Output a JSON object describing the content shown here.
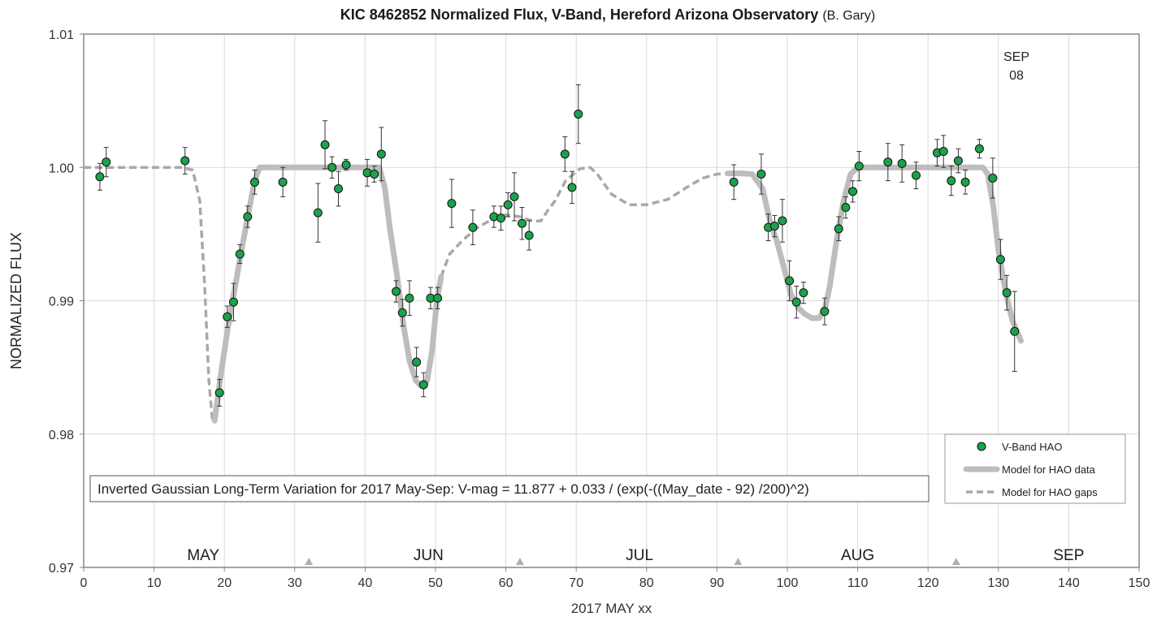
{
  "chart_data": {
    "type": "scatter",
    "title": "KIC 8462852 Normalized Flux, V-Band, Hereford Arizona Observatory",
    "title_credit": "(B. Gary)",
    "xlabel": "2017 MAY xx",
    "ylabel": "NORMALIZED FLUX",
    "xlim": [
      0,
      150
    ],
    "ylim": [
      0.97,
      1.01
    ],
    "x_ticks": [
      0,
      10,
      20,
      30,
      40,
      50,
      60,
      70,
      80,
      90,
      100,
      110,
      120,
      130,
      140,
      150
    ],
    "y_ticks": [
      0.97,
      0.98,
      0.99,
      1.0,
      1.01
    ],
    "y_tick_labels": [
      "0.97",
      "0.98",
      "0.99",
      "1.00",
      "1.01"
    ],
    "grid": true,
    "legend_position": "bottom-right",
    "colors": {
      "points": "#1aa34a",
      "model": "#bdbdbd",
      "gaps": "#a8a8a8",
      "months": "#b0b0b0",
      "axis": "#868686"
    },
    "annotations": {
      "formula": "Inverted Gaussian Long-Term Variation for 2017 May-Sep:  V-mag = 11.877 + 0.033 / (exp(-((May_date - 92) /200)^2)",
      "sep08": [
        "SEP",
        "08"
      ]
    },
    "months": [
      {
        "label": "MAY",
        "x": 17
      },
      {
        "label": "JUN",
        "x": 49
      },
      {
        "label": "JUL",
        "x": 79
      },
      {
        "label": "AUG",
        "x": 110
      },
      {
        "label": "SEP",
        "x": 140
      }
    ],
    "month_boundaries": [
      32,
      62,
      93,
      124
    ],
    "series": [
      {
        "name": "V-Band HAO",
        "kind": "points",
        "points": [
          {
            "x": 2.3,
            "y": 0.9993,
            "err": 0.001
          },
          {
            "x": 3.2,
            "y": 1.0004,
            "err": 0.0011
          },
          {
            "x": 14.4,
            "y": 1.0005,
            "err": 0.001
          },
          {
            "x": 19.3,
            "y": 0.9831,
            "err": 0.001
          },
          {
            "x": 20.4,
            "y": 0.9888,
            "err": 0.0008
          },
          {
            "x": 21.3,
            "y": 0.9899,
            "err": 0.0014
          },
          {
            "x": 22.2,
            "y": 0.9935,
            "err": 0.0007
          },
          {
            "x": 23.3,
            "y": 0.9963,
            "err": 0.0008
          },
          {
            "x": 24.3,
            "y": 0.9989,
            "err": 0.0009
          },
          {
            "x": 28.3,
            "y": 0.9989,
            "err": 0.0011
          },
          {
            "x": 33.3,
            "y": 0.9966,
            "err": 0.0022
          },
          {
            "x": 34.3,
            "y": 1.0017,
            "err": 0.0018
          },
          {
            "x": 35.3,
            "y": 1.0,
            "err": 0.0008
          },
          {
            "x": 36.2,
            "y": 0.9984,
            "err": 0.0013
          },
          {
            "x": 37.3,
            "y": 1.0002,
            "err": 0.0004
          },
          {
            "x": 40.3,
            "y": 0.9996,
            "err": 0.001
          },
          {
            "x": 41.3,
            "y": 0.9995,
            "err": 0.0006
          },
          {
            "x": 42.3,
            "y": 1.001,
            "err": 0.002
          },
          {
            "x": 44.4,
            "y": 0.9907,
            "err": 0.0008
          },
          {
            "x": 45.3,
            "y": 0.9891,
            "err": 0.001
          },
          {
            "x": 46.3,
            "y": 0.9902,
            "err": 0.0013
          },
          {
            "x": 47.3,
            "y": 0.9854,
            "err": 0.0011
          },
          {
            "x": 48.3,
            "y": 0.9837,
            "err": 0.0009
          },
          {
            "x": 49.3,
            "y": 0.9902,
            "err": 0.0008
          },
          {
            "x": 50.3,
            "y": 0.9902,
            "err": 0.0008
          },
          {
            "x": 52.3,
            "y": 0.9973,
            "err": 0.0018
          },
          {
            "x": 55.3,
            "y": 0.9955,
            "err": 0.0013
          },
          {
            "x": 58.3,
            "y": 0.9963,
            "err": 0.0008
          },
          {
            "x": 59.3,
            "y": 0.9962,
            "err": 0.0009
          },
          {
            "x": 60.3,
            "y": 0.9972,
            "err": 0.0009
          },
          {
            "x": 61.2,
            "y": 0.9978,
            "err": 0.0018
          },
          {
            "x": 62.3,
            "y": 0.9958,
            "err": 0.0012
          },
          {
            "x": 63.3,
            "y": 0.9949,
            "err": 0.0011
          },
          {
            "x": 68.4,
            "y": 1.001,
            "err": 0.0013
          },
          {
            "x": 69.4,
            "y": 0.9985,
            "err": 0.0012
          },
          {
            "x": 70.3,
            "y": 1.004,
            "err": 0.0022
          },
          {
            "x": 92.4,
            "y": 0.9989,
            "err": 0.0013
          },
          {
            "x": 96.3,
            "y": 0.9995,
            "err": 0.0015
          },
          {
            "x": 97.3,
            "y": 0.9955,
            "err": 0.001
          },
          {
            "x": 98.2,
            "y": 0.9956,
            "err": 0.0008
          },
          {
            "x": 99.3,
            "y": 0.996,
            "err": 0.0016
          },
          {
            "x": 100.3,
            "y": 0.9915,
            "err": 0.0015
          },
          {
            "x": 101.3,
            "y": 0.9899,
            "err": 0.0012
          },
          {
            "x": 102.3,
            "y": 0.9906,
            "err": 0.0008
          },
          {
            "x": 105.3,
            "y": 0.9892,
            "err": 0.001
          },
          {
            "x": 107.3,
            "y": 0.9954,
            "err": 0.0009
          },
          {
            "x": 108.3,
            "y": 0.997,
            "err": 0.0008
          },
          {
            "x": 109.3,
            "y": 0.9982,
            "err": 0.0008
          },
          {
            "x": 110.2,
            "y": 1.0001,
            "err": 0.0011
          },
          {
            "x": 114.3,
            "y": 1.0004,
            "err": 0.0014
          },
          {
            "x": 116.3,
            "y": 1.0003,
            "err": 0.0014
          },
          {
            "x": 118.3,
            "y": 0.9994,
            "err": 0.001
          },
          {
            "x": 121.3,
            "y": 1.0011,
            "err": 0.001
          },
          {
            "x": 122.2,
            "y": 1.0012,
            "err": 0.0012
          },
          {
            "x": 123.3,
            "y": 0.999,
            "err": 0.0011
          },
          {
            "x": 124.3,
            "y": 1.0005,
            "err": 0.0009
          },
          {
            "x": 125.3,
            "y": 0.9989,
            "err": 0.0009
          },
          {
            "x": 127.3,
            "y": 1.0014,
            "err": 0.0007
          },
          {
            "x": 129.2,
            "y": 0.9992,
            "err": 0.0015
          },
          {
            "x": 130.3,
            "y": 0.9931,
            "err": 0.0015
          },
          {
            "x": 131.2,
            "y": 0.9906,
            "err": 0.0013
          },
          {
            "x": 132.3,
            "y": 0.9877,
            "err": 0.003
          }
        ]
      },
      {
        "name": "Model for HAO data",
        "kind": "solid",
        "segments": [
          [
            [
              18.6,
              0.981
            ],
            [
              19.5,
              0.9845
            ],
            [
              20.5,
              0.988
            ],
            [
              21.5,
              0.991
            ],
            [
              22.5,
              0.994
            ],
            [
              23.5,
              0.9968
            ],
            [
              24.3,
              0.999
            ],
            [
              25.0,
              1.0
            ],
            [
              42.0,
              1.0
            ],
            [
              42.8,
              0.9985
            ],
            [
              43.5,
              0.9955
            ],
            [
              44.5,
              0.992
            ],
            [
              45.5,
              0.988
            ],
            [
              46.3,
              0.9855
            ],
            [
              47.2,
              0.984
            ],
            [
              48.0,
              0.9836
            ],
            [
              48.8,
              0.984
            ],
            [
              49.5,
              0.9862
            ],
            [
              50.2,
              0.99
            ],
            [
              50.8,
              0.9918
            ]
          ],
          [
            [
              91.5,
              0.99955
            ],
            [
              93.5,
              0.99955
            ],
            [
              95.0,
              0.9995
            ],
            [
              96.5,
              0.9984
            ],
            [
              97.5,
              0.996
            ],
            [
              98.5,
              0.9945
            ],
            [
              99.5,
              0.9925
            ],
            [
              100.5,
              0.9905
            ],
            [
              101.5,
              0.9895
            ],
            [
              102.5,
              0.989
            ],
            [
              103.5,
              0.9887
            ],
            [
              104.5,
              0.9887
            ],
            [
              105.3,
              0.9893
            ],
            [
              106.0,
              0.991
            ],
            [
              107.0,
              0.9945
            ],
            [
              108.0,
              0.9975
            ],
            [
              109.0,
              0.9995
            ],
            [
              110.0,
              1.0
            ],
            [
              127.8,
              1.0
            ],
            [
              128.5,
              0.9995
            ],
            [
              129.3,
              0.997
            ],
            [
              130.0,
              0.9938
            ],
            [
              131.0,
              0.9907
            ],
            [
              132.0,
              0.9885
            ],
            [
              133.2,
              0.987
            ]
          ]
        ]
      },
      {
        "name": "Model for HAO gaps",
        "kind": "dashed",
        "segments": [
          [
            [
              0,
              1.0
            ],
            [
              14.0,
              1.0
            ],
            [
              15.5,
              0.9998
            ],
            [
              16.5,
              0.9975
            ],
            [
              17.2,
              0.991
            ],
            [
              17.8,
              0.984
            ],
            [
              18.3,
              0.981
            ]
          ],
          [
            [
              50.8,
              0.9918
            ],
            [
              52.0,
              0.9935
            ],
            [
              54.0,
              0.9946
            ],
            [
              56.0,
              0.9955
            ],
            [
              58.0,
              0.9961
            ],
            [
              60.0,
              0.99645
            ],
            [
              62.0,
              0.9963
            ],
            [
              64.0,
              0.99595
            ],
            [
              65.0,
              0.996
            ],
            [
              66.0,
              0.9968
            ],
            [
              67.0,
              0.9975
            ],
            [
              68.5,
              0.999
            ],
            [
              70.5,
              0.9999
            ],
            [
              72.0,
              1.0
            ],
            [
              73.0,
              0.9995
            ],
            [
              75.0,
              0.998
            ],
            [
              77.5,
              0.9972
            ],
            [
              80.0,
              0.9972
            ],
            [
              83.0,
              0.9976
            ],
            [
              86.0,
              0.9986
            ],
            [
              88.0,
              0.9992
            ],
            [
              90.0,
              0.9995
            ],
            [
              91.5,
              0.99955
            ]
          ]
        ]
      }
    ]
  }
}
